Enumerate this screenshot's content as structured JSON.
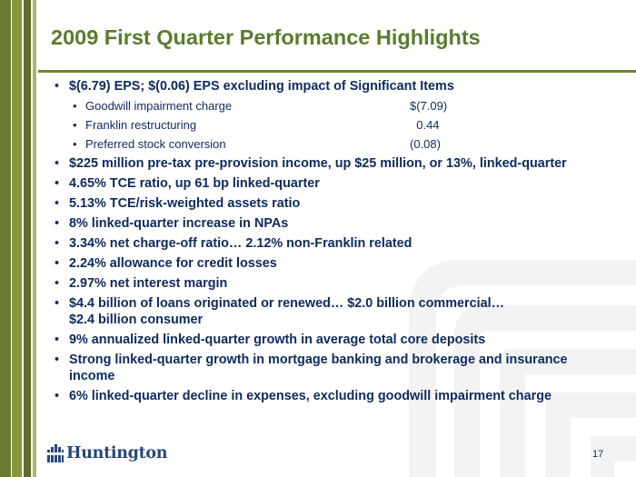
{
  "slide": {
    "title": "2009 First Quarter Performance Highlights",
    "bullets": [
      {
        "text": "$(6.79) EPS; $(0.06) EPS excluding impact of Significant Items"
      },
      {
        "text": "$225 million pre-tax pre-provision income, up $25 million, or 13%, linked-quarter"
      },
      {
        "text": "4.65% TCE ratio, up 61 bp linked-quarter"
      },
      {
        "text": "5.13% TCE/risk-weighted assets ratio"
      },
      {
        "text": "8% linked-quarter increase in NPAs"
      },
      {
        "text": "3.34% net charge-off ratio… 2.12% non-Franklin related"
      },
      {
        "text": "2.24% allowance for credit losses"
      },
      {
        "text": "2.97% net interest margin"
      },
      {
        "line1": "$4.4 billion of loans originated or renewed… $2.0 billion commercial…",
        "line2": "$2.4 billion consumer"
      },
      {
        "text": "9% annualized linked-quarter growth in average total core deposits"
      },
      {
        "line1": "Strong linked-quarter growth in mortgage banking and brokerage and insurance",
        "line2": "income"
      },
      {
        "text": "6% linked-quarter decline in expenses, excluding goodwill impairment charge"
      }
    ],
    "sub_items": [
      {
        "label": "Goodwill impairment charge",
        "value": "$(7.09)"
      },
      {
        "label": "Franklin restructuring",
        "value": "  0.44"
      },
      {
        "label": "Preferred stock conversion",
        "value": "(0.08)"
      }
    ]
  },
  "footer": {
    "logo_text": "Huntington",
    "page_number": "17"
  },
  "colors": {
    "title": "#5a7c2b",
    "body_text": "#0e2a5c",
    "rule": "#6b8a2e",
    "logo": "#27467a"
  }
}
